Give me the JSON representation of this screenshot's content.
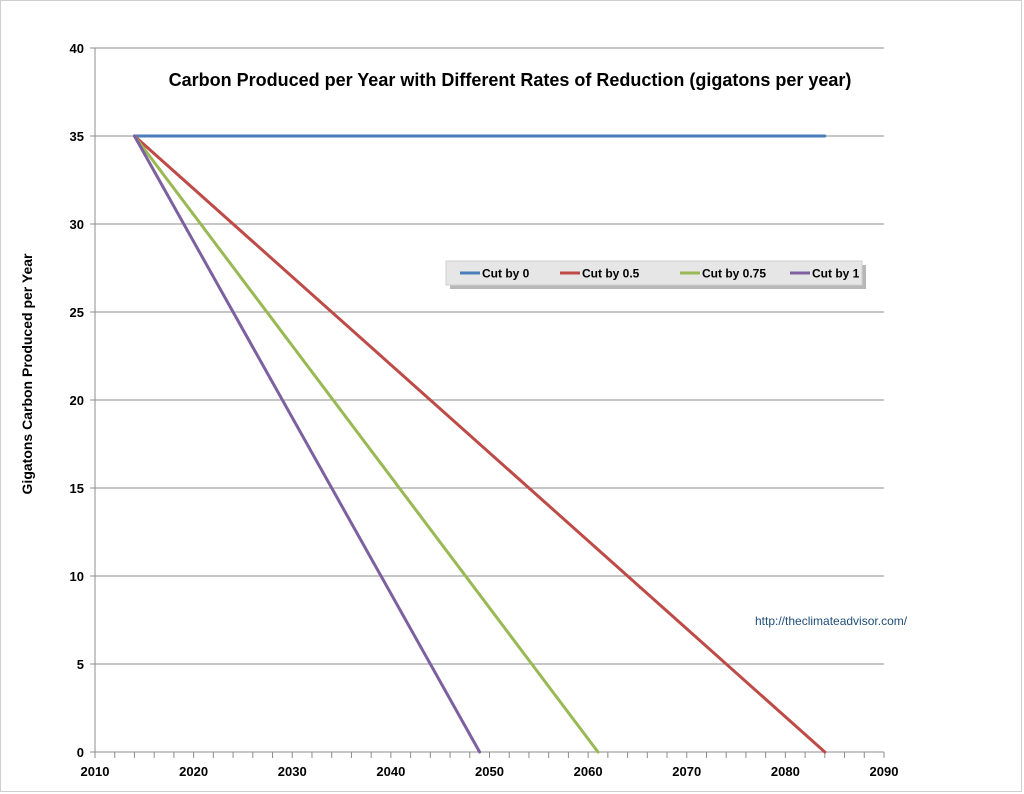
{
  "chart_data": {
    "type": "line",
    "title": "Carbon Produced per Year with Different Rates of Reduction (gigatons per year)",
    "xlabel": "",
    "ylabel": "Gigatons Carbon Produced per Year",
    "xlim": [
      2010,
      2090
    ],
    "ylim": [
      0,
      40
    ],
    "x_ticks": [
      "2010",
      "2020",
      "2030",
      "2040",
      "2050",
      "2060",
      "2070",
      "2080",
      "2090"
    ],
    "y_ticks": [
      "0",
      "5",
      "10",
      "15",
      "20",
      "25",
      "30",
      "35",
      "40"
    ],
    "grid": "horizontal",
    "legend_placement": "center-right",
    "annotation": "http://theclimateadvisor.com/",
    "series": [
      {
        "name": "Cut by 0",
        "color": "#4a7ebb",
        "x": [
          2014,
          2084
        ],
        "y": [
          35,
          35
        ]
      },
      {
        "name": "Cut by 0.5",
        "color": "#be4b48",
        "x": [
          2014,
          2084
        ],
        "y": [
          35,
          0
        ]
      },
      {
        "name": "Cut by 0.75",
        "color": "#98b954",
        "x": [
          2014,
          2061
        ],
        "y": [
          35,
          0
        ]
      },
      {
        "name": "Cut by 1",
        "color": "#7d60a0",
        "x": [
          2014,
          2049
        ],
        "y": [
          35,
          0
        ]
      }
    ]
  }
}
